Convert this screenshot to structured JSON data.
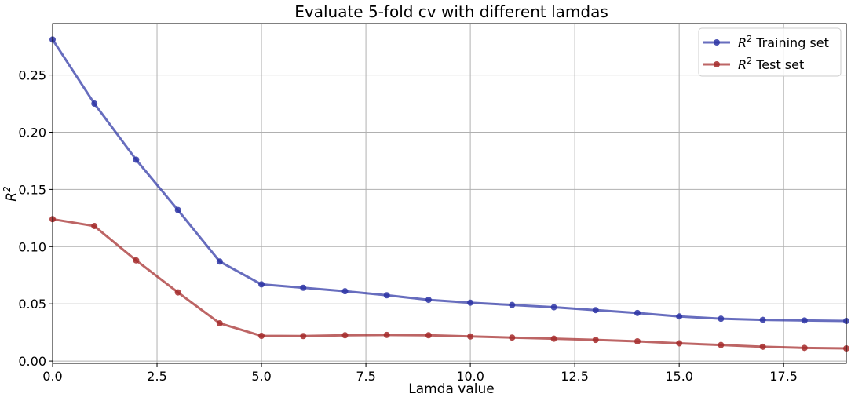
{
  "chart_data": {
    "type": "line",
    "title": "Evaluate 5-fold cv with different lamdas",
    "xlabel": "Lamda value",
    "ylabel": "R²",
    "xlim": [
      0,
      19
    ],
    "ylim": [
      -0.002,
      0.295
    ],
    "grid": true,
    "legend_position": "top-right",
    "x": [
      0,
      1,
      2,
      3,
      4,
      5,
      6,
      7,
      8,
      9,
      10,
      11,
      12,
      13,
      14,
      15,
      16,
      17,
      18,
      19
    ],
    "x_ticks": [
      0,
      2.5,
      5,
      7.5,
      10,
      12.5,
      15,
      17.5
    ],
    "x_tick_labels": [
      "0.0",
      "2.5",
      "5.0",
      "7.5",
      "10.0",
      "12.5",
      "15.0",
      "17.5"
    ],
    "y_ticks": [
      0,
      0.05,
      0.1,
      0.15,
      0.2,
      0.25
    ],
    "y_tick_labels": [
      "0.00",
      "0.05",
      "0.10",
      "0.15",
      "0.20",
      "0.25"
    ],
    "series": [
      {
        "name": "R² Training set",
        "name_base": "R",
        "name_sup": "2",
        "name_rest": " Training set",
        "color": "#2d34a5",
        "values": [
          0.281,
          0.225,
          0.176,
          0.132,
          0.087,
          0.067,
          0.064,
          0.061,
          0.0575,
          0.0535,
          0.051,
          0.049,
          0.047,
          0.0445,
          0.042,
          0.039,
          0.037,
          0.036,
          0.0355,
          0.035
        ]
      },
      {
        "name": "R² Test set",
        "name_base": "R",
        "name_sup": "2",
        "name_rest": " Test set",
        "color": "#a42a2a",
        "values": [
          0.124,
          0.118,
          0.088,
          0.06,
          0.033,
          0.022,
          0.0218,
          0.0225,
          0.0228,
          0.0225,
          0.0215,
          0.0205,
          0.0195,
          0.0185,
          0.0172,
          0.0155,
          0.014,
          0.0125,
          0.0115,
          0.011
        ]
      }
    ]
  }
}
